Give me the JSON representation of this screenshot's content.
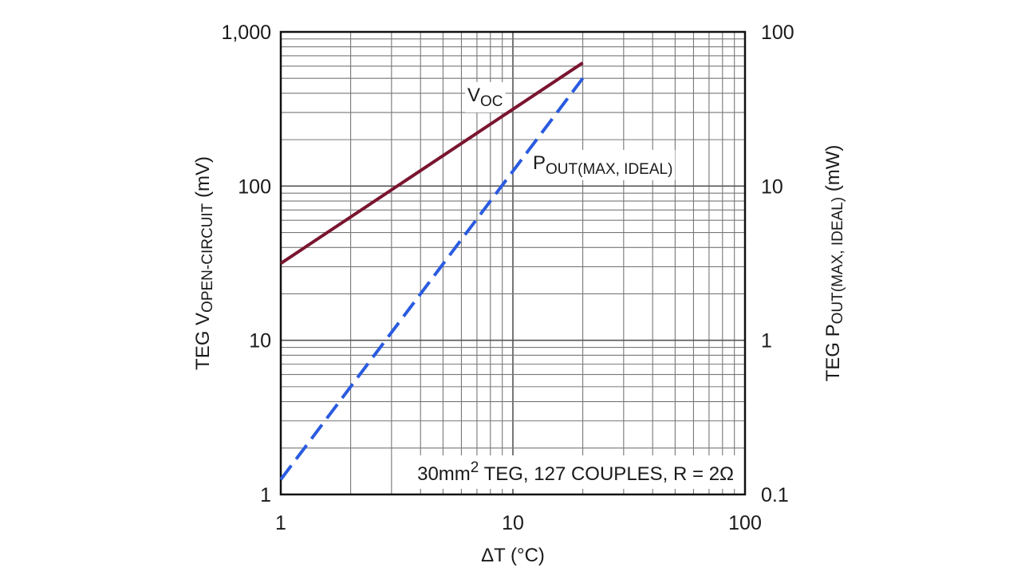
{
  "chart_data": {
    "type": "line",
    "scale": {
      "x": "log",
      "y_left": "log",
      "y_right": "log"
    },
    "grid": true,
    "xlabel": "ΔT (°C)",
    "xlim": [
      1,
      100
    ],
    "x_ticks": [
      "1",
      "10",
      "100"
    ],
    "ylabel_left": {
      "main": "TEG V",
      "sub": "OPEN-CIRCUIT",
      "tail": " (mV)"
    },
    "ylim_left": [
      1,
      1000
    ],
    "y_left_ticks": [
      "1",
      "10",
      "100",
      "1,000"
    ],
    "ylabel_right": {
      "main": "TEG P",
      "sub": "OUT(MAX, IDEAL)",
      "tail": " (mW)"
    },
    "ylim_right": [
      0.1,
      100
    ],
    "y_right_ticks": [
      "0.1",
      "1",
      "10",
      "100"
    ],
    "annotation": {
      "pre": "30mm",
      "sup": "2",
      "post": " TEG, 127 COUPLES, R = 2Ω"
    },
    "series": [
      {
        "name": "VOC",
        "label_main": "V",
        "label_sub": "OC",
        "axis": "left",
        "color": "#7a1530",
        "style": "solid",
        "x": [
          1,
          20
        ],
        "y": [
          31.5,
          630
        ]
      },
      {
        "name": "POUT(MAX, IDEAL)",
        "label_main": "P",
        "label_sub": "OUT(MAX, IDEAL)",
        "axis": "right",
        "color": "#2a5be0",
        "style": "dashed",
        "x": [
          1,
          20
        ],
        "y": [
          0.125,
          50
        ]
      }
    ]
  }
}
